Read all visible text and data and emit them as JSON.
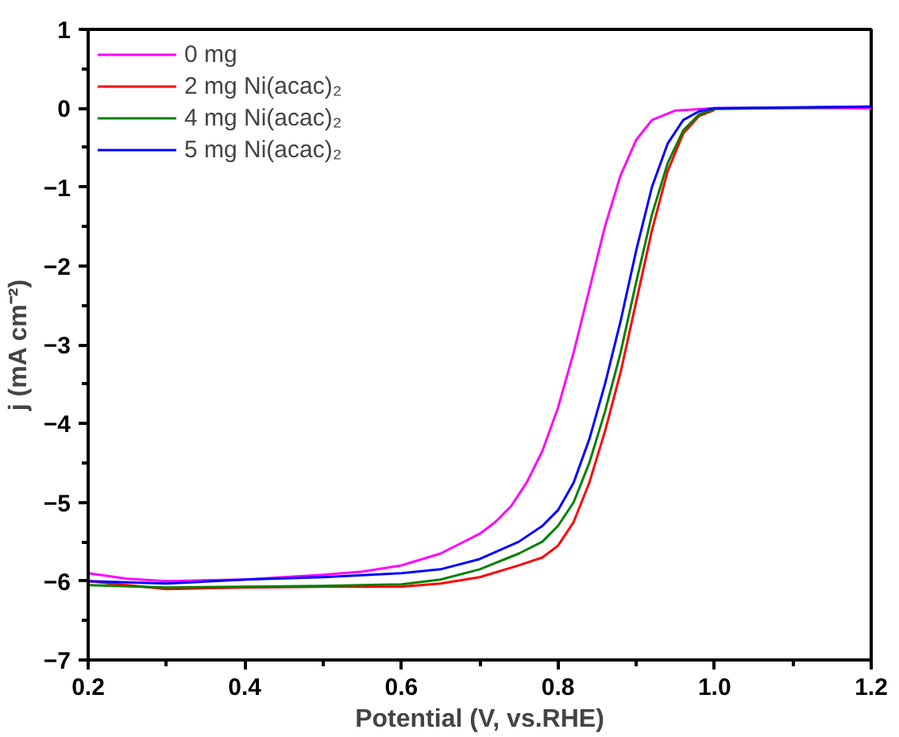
{
  "chart_data": {
    "type": "line",
    "xlabel": "Potential (V, vs.RHE)",
    "ylabel": "j (mA cm⁻²)",
    "xlim": [
      0.2,
      1.2
    ],
    "ylim": [
      -7,
      1
    ],
    "xticks": [
      0.2,
      0.4,
      0.6,
      0.8,
      {
        "value": 1.0,
        "label": "1.0"
      },
      1.2
    ],
    "yticks": [
      -7,
      -6,
      -5,
      -4,
      -3,
      -2,
      -1,
      0,
      1
    ],
    "grid": false,
    "legend": "top left",
    "line_style": "solid",
    "marker": "none",
    "series": [
      {
        "name": "0 mg",
        "color": "#ff00ff",
        "x": [
          0.2,
          0.25,
          0.3,
          0.4,
          0.5,
          0.55,
          0.6,
          0.65,
          0.7,
          0.72,
          0.74,
          0.76,
          0.78,
          0.8,
          0.82,
          0.84,
          0.86,
          0.88,
          0.9,
          0.92,
          0.95,
          1.0,
          1.2
        ],
        "values": [
          -5.9,
          -5.97,
          -6.0,
          -5.98,
          -5.92,
          -5.88,
          -5.8,
          -5.65,
          -5.4,
          -5.25,
          -5.05,
          -4.75,
          -4.35,
          -3.8,
          -3.1,
          -2.3,
          -1.5,
          -0.85,
          -0.4,
          -0.15,
          -0.03,
          0.0,
          0.0
        ]
      },
      {
        "name": "2 mg Ni(acac)₂",
        "color": "#ff0000",
        "x": [
          0.2,
          0.3,
          0.4,
          0.5,
          0.6,
          0.65,
          0.7,
          0.75,
          0.78,
          0.8,
          0.82,
          0.84,
          0.86,
          0.88,
          0.9,
          0.92,
          0.94,
          0.96,
          0.98,
          1.0
        ],
        "values": [
          -6.0,
          -6.1,
          -6.08,
          -6.07,
          -6.07,
          -6.03,
          -5.95,
          -5.8,
          -5.7,
          -5.55,
          -5.25,
          -4.75,
          -4.1,
          -3.35,
          -2.45,
          -1.55,
          -0.8,
          -0.32,
          -0.1,
          -0.02
        ]
      },
      {
        "name": "4 mg Ni(acac)₂",
        "color": "#008000",
        "x": [
          0.2,
          0.3,
          0.4,
          0.5,
          0.6,
          0.65,
          0.7,
          0.75,
          0.78,
          0.8,
          0.82,
          0.84,
          0.86,
          0.88,
          0.9,
          0.92,
          0.94,
          0.96,
          0.98,
          1.0,
          1.2
        ],
        "values": [
          -6.05,
          -6.08,
          -6.07,
          -6.06,
          -6.04,
          -5.98,
          -5.85,
          -5.65,
          -5.5,
          -5.3,
          -5.0,
          -4.5,
          -3.85,
          -3.1,
          -2.2,
          -1.35,
          -0.7,
          -0.28,
          -0.08,
          -0.01,
          0.02
        ]
      },
      {
        "name": "5 mg Ni(acac)₂",
        "color": "#0000ff",
        "x": [
          0.2,
          0.3,
          0.4,
          0.5,
          0.6,
          0.65,
          0.7,
          0.75,
          0.78,
          0.8,
          0.82,
          0.84,
          0.86,
          0.88,
          0.9,
          0.92,
          0.94,
          0.96,
          0.98,
          1.0,
          1.2
        ],
        "values": [
          -6.0,
          -6.03,
          -5.98,
          -5.95,
          -5.9,
          -5.85,
          -5.72,
          -5.5,
          -5.3,
          -5.1,
          -4.75,
          -4.2,
          -3.5,
          -2.7,
          -1.8,
          -1.0,
          -0.45,
          -0.15,
          -0.04,
          0.0,
          0.02
        ]
      }
    ]
  }
}
